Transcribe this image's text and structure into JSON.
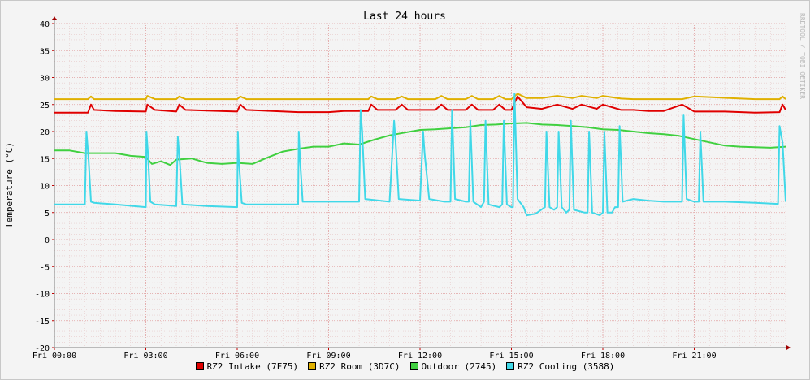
{
  "chart_data": {
    "type": "line",
    "title": "Last 24 hours",
    "ylabel": "Temperature (°C)",
    "xlabel": "",
    "watermark": "RRDTOOL / TOBI OETIKER",
    "ylim": [
      -20,
      40
    ],
    "yticks": [
      -20,
      -15,
      -10,
      -5,
      0,
      5,
      10,
      15,
      20,
      25,
      30,
      35,
      40
    ],
    "xlim": [
      0,
      24
    ],
    "x_tick_hours": [
      0,
      3,
      6,
      9,
      12,
      15,
      18,
      21
    ],
    "x_tick_labels": [
      "Fri 00:00",
      "Fri 03:00",
      "Fri 06:00",
      "Fri 09:00",
      "Fri 12:00",
      "Fri 15:00",
      "Fri 18:00",
      "Fri 21:00"
    ],
    "grid": true,
    "legend_position": "bottom",
    "series": [
      {
        "name": "RZ2 Intake (7F75)",
        "color": "#e00000",
        "x": [
          0,
          1.1,
          1.2,
          1.3,
          2,
          3,
          3.05,
          3.3,
          4,
          4.1,
          4.3,
          6,
          6.1,
          6.3,
          8,
          9,
          9.5,
          10.3,
          10.4,
          10.6,
          11.2,
          11.4,
          11.6,
          12.5,
          12.7,
          12.9,
          13.5,
          13.7,
          13.9,
          14.4,
          14.6,
          14.8,
          15,
          15.2,
          15.5,
          16,
          16.5,
          17,
          17.3,
          17.8,
          18,
          18.6,
          19,
          19.5,
          20,
          20.6,
          21,
          22,
          23,
          23.8,
          23.9,
          24
        ],
        "y": [
          23.5,
          23.5,
          25,
          24,
          23.8,
          23.7,
          25,
          24,
          23.7,
          25,
          24,
          23.7,
          25,
          24,
          23.6,
          23.6,
          23.8,
          23.8,
          25,
          24,
          24,
          25,
          24,
          24,
          25,
          24,
          24,
          25,
          24,
          24,
          25,
          24,
          24,
          26.5,
          24.5,
          24.2,
          25,
          24.2,
          25,
          24.2,
          25,
          24,
          24,
          23.8,
          23.8,
          25,
          23.7,
          23.7,
          23.5,
          23.6,
          25,
          24
        ]
      },
      {
        "name": "RZ2 Room (3D7C)",
        "color": "#e0b000",
        "x": [
          0,
          1.1,
          1.2,
          1.3,
          3,
          3.05,
          3.3,
          4,
          4.1,
          4.3,
          6,
          6.1,
          6.3,
          9,
          10.3,
          10.4,
          10.6,
          11.2,
          11.4,
          11.6,
          12.5,
          12.7,
          12.9,
          13.5,
          13.7,
          13.9,
          14.4,
          14.6,
          14.8,
          15,
          15.2,
          15.5,
          16,
          16.5,
          17,
          17.3,
          17.8,
          18,
          18.6,
          19,
          20.6,
          21,
          23,
          23.8,
          23.9,
          24
        ],
        "y": [
          26,
          26,
          26.5,
          26,
          26,
          26.6,
          26,
          26,
          26.5,
          26,
          26,
          26.5,
          26,
          26,
          26,
          26.5,
          26,
          26,
          26.5,
          26,
          26,
          26.6,
          26,
          26,
          26.6,
          26,
          26,
          26.6,
          26,
          26,
          27,
          26.2,
          26.2,
          26.6,
          26.2,
          26.6,
          26.2,
          26.6,
          26.1,
          26,
          26,
          26.5,
          26,
          26,
          26.5,
          26
        ]
      },
      {
        "name": "Outdoor (2745)",
        "color": "#40d040",
        "x": [
          0,
          0.5,
          1,
          1.5,
          2,
          2.5,
          3,
          3.2,
          3.5,
          3.8,
          4,
          4.5,
          5,
          5.5,
          6,
          6.5,
          7,
          7.5,
          8,
          8.5,
          9,
          9.5,
          10,
          10.5,
          11,
          11.5,
          12,
          12.5,
          13,
          13.5,
          14,
          14.5,
          15,
          15.5,
          16,
          16.5,
          17,
          17.5,
          18,
          18.5,
          19,
          19.5,
          20,
          20.5,
          21,
          21.5,
          22,
          22.5,
          23,
          23.5,
          24
        ],
        "y": [
          16.5,
          16.5,
          16,
          16,
          16,
          15.5,
          15.3,
          14,
          14.5,
          13.8,
          14.8,
          15,
          14.2,
          14,
          14.2,
          14,
          15.2,
          16.3,
          16.8,
          17.2,
          17.2,
          17.8,
          17.6,
          18.5,
          19.3,
          19.8,
          20.3,
          20.4,
          20.6,
          20.8,
          21.2,
          21.3,
          21.5,
          21.6,
          21.3,
          21.2,
          21,
          20.8,
          20.4,
          20.3,
          20,
          19.7,
          19.5,
          19.2,
          18.6,
          18,
          17.4,
          17.2,
          17.1,
          17,
          17.2
        ]
      },
      {
        "name": "RZ2 Cooling (3588)",
        "color": "#40d8e8",
        "x": [
          0,
          1,
          1.05,
          1.12,
          1.2,
          1.3,
          2,
          3,
          3.02,
          3.07,
          3.15,
          3.3,
          4,
          4.05,
          4.12,
          4.2,
          5,
          6,
          6.02,
          6.05,
          6.15,
          6.3,
          7,
          8,
          8.02,
          8.06,
          8.15,
          8.3,
          9,
          10,
          10.05,
          10.1,
          10.2,
          11,
          11.15,
          11.2,
          11.3,
          12,
          12.1,
          12.15,
          12.3,
          12.8,
          13,
          13.05,
          13.15,
          13.5,
          13.6,
          13.65,
          13.75,
          14,
          14.1,
          14.15,
          14.25,
          14.6,
          14.7,
          14.75,
          14.85,
          15,
          15.05,
          15.1,
          15.2,
          15.4,
          15.5,
          15.8,
          16.1,
          16.15,
          16.25,
          16.4,
          16.5,
          16.55,
          16.65,
          16.8,
          16.9,
          16.95,
          17.05,
          17.4,
          17.5,
          17.55,
          17.65,
          17.9,
          18,
          18.05,
          18.15,
          18.3,
          18.4,
          18.5,
          18.55,
          18.65,
          19,
          19.5,
          20,
          20.6,
          20.65,
          20.75,
          21,
          21.15,
          21.2,
          21.3,
          22,
          23,
          23.75,
          23.8,
          23.9,
          24
        ],
        "y": [
          6.5,
          6.5,
          20,
          15,
          7,
          6.8,
          6.5,
          6,
          20,
          16,
          7,
          6.5,
          6.2,
          19,
          14,
          6.5,
          6.2,
          6,
          20,
          15,
          6.8,
          6.5,
          6.5,
          6.5,
          20,
          15,
          7,
          7,
          7,
          7,
          24,
          20,
          7.5,
          7,
          22,
          18,
          7.5,
          7.2,
          20,
          16,
          7.5,
          7,
          7,
          24,
          7.5,
          7,
          7,
          22,
          7,
          6,
          7,
          22,
          6.5,
          6,
          6.5,
          22,
          6.5,
          6,
          6,
          27,
          7.5,
          6,
          4.5,
          4.8,
          6,
          20,
          6,
          5.5,
          6,
          20,
          6,
          5,
          5.5,
          22,
          5.5,
          5,
          5,
          20,
          5,
          4.5,
          5,
          20,
          5,
          5,
          6,
          6,
          21,
          7,
          7.5,
          7.2,
          7,
          7,
          23,
          7.5,
          7,
          7,
          20,
          7,
          7,
          6.8,
          6.6,
          21,
          18,
          7
        ]
      }
    ]
  }
}
